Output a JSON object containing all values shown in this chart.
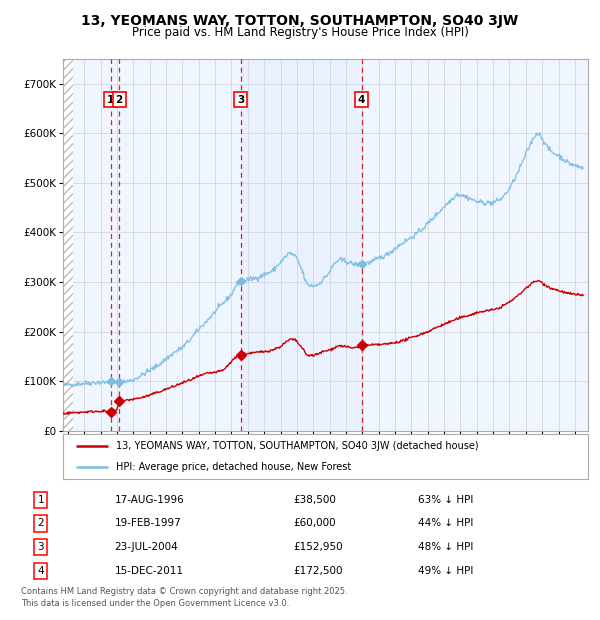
{
  "title": "13, YEOMANS WAY, TOTTON, SOUTHAMPTON, SO40 3JW",
  "subtitle": "Price paid vs. HM Land Registry's House Price Index (HPI)",
  "legend_line1": "13, YEOMANS WAY, TOTTON, SOUTHAMPTON, SO40 3JW (detached house)",
  "legend_line2": "HPI: Average price, detached house, New Forest",
  "transactions": [
    {
      "label": "1",
      "date": "1996-08-17",
      "price": 38500,
      "x_plot": 1996.63
    },
    {
      "label": "2",
      "date": "1997-02-19",
      "price": 60000,
      "x_plot": 1997.13
    },
    {
      "label": "3",
      "date": "2004-07-23",
      "price": 152950,
      "x_plot": 2004.56
    },
    {
      "label": "4",
      "date": "2011-12-15",
      "price": 172500,
      "x_plot": 2011.96
    }
  ],
  "table_rows": [
    {
      "num": "1",
      "date": "17-AUG-1996",
      "price": "£38,500",
      "pct": "63% ↓ HPI"
    },
    {
      "num": "2",
      "date": "19-FEB-1997",
      "price": "£60,000",
      "pct": "44% ↓ HPI"
    },
    {
      "num": "3",
      "date": "23-JUL-2004",
      "price": "£152,950",
      "pct": "48% ↓ HPI"
    },
    {
      "num": "4",
      "date": "15-DEC-2011",
      "price": "£172,500",
      "pct": "49% ↓ HPI"
    }
  ],
  "footnote": "Contains HM Land Registry data © Crown copyright and database right 2025.\nThis data is licensed under the Open Government Licence v3.0.",
  "hpi_color": "#7bbde0",
  "price_color": "#cc0000",
  "vline_color": "#cc0000",
  "shade_color": "#ddeeff",
  "background_color": "#ffffff",
  "chart_bg": "#f0f6ff",
  "ylim": [
    0,
    750000
  ],
  "xlim_start": 1993.7,
  "xlim_end": 2025.8,
  "hpi_anchors": [
    [
      1993.7,
      92000
    ],
    [
      1994.0,
      93000
    ],
    [
      1995.0,
      96000
    ],
    [
      1996.0,
      98000
    ],
    [
      1997.0,
      97000
    ],
    [
      1997.5,
      99000
    ],
    [
      1998.0,
      103000
    ],
    [
      1998.5,
      112000
    ],
    [
      1999.0,
      122000
    ],
    [
      1999.5,
      132000
    ],
    [
      2000.0,
      145000
    ],
    [
      2000.5,
      158000
    ],
    [
      2001.0,
      168000
    ],
    [
      2001.5,
      185000
    ],
    [
      2002.0,
      205000
    ],
    [
      2002.5,
      222000
    ],
    [
      2003.0,
      240000
    ],
    [
      2003.5,
      258000
    ],
    [
      2004.0,
      275000
    ],
    [
      2004.3,
      295000
    ],
    [
      2004.6,
      302000
    ],
    [
      2005.0,
      305000
    ],
    [
      2005.5,
      308000
    ],
    [
      2006.0,
      315000
    ],
    [
      2006.5,
      322000
    ],
    [
      2007.0,
      340000
    ],
    [
      2007.5,
      358000
    ],
    [
      2007.8,
      355000
    ],
    [
      2008.0,
      348000
    ],
    [
      2008.3,
      325000
    ],
    [
      2008.6,
      295000
    ],
    [
      2009.0,
      292000
    ],
    [
      2009.3,
      295000
    ],
    [
      2009.6,
      305000
    ],
    [
      2010.0,
      320000
    ],
    [
      2010.3,
      338000
    ],
    [
      2010.6,
      345000
    ],
    [
      2011.0,
      342000
    ],
    [
      2011.3,
      338000
    ],
    [
      2011.6,
      335000
    ],
    [
      2012.0,
      337000
    ],
    [
      2012.5,
      340000
    ],
    [
      2013.0,
      348000
    ],
    [
      2013.5,
      355000
    ],
    [
      2014.0,
      368000
    ],
    [
      2014.5,
      380000
    ],
    [
      2015.0,
      390000
    ],
    [
      2015.5,
      402000
    ],
    [
      2016.0,
      418000
    ],
    [
      2016.5,
      435000
    ],
    [
      2017.0,
      452000
    ],
    [
      2017.5,
      468000
    ],
    [
      2017.8,
      478000
    ],
    [
      2018.0,
      476000
    ],
    [
      2018.5,
      470000
    ],
    [
      2019.0,
      462000
    ],
    [
      2019.5,
      460000
    ],
    [
      2020.0,
      460000
    ],
    [
      2020.5,
      468000
    ],
    [
      2021.0,
      488000
    ],
    [
      2021.5,
      520000
    ],
    [
      2022.0,
      558000
    ],
    [
      2022.3,
      580000
    ],
    [
      2022.6,
      598000
    ],
    [
      2022.8,
      600000
    ],
    [
      2023.0,
      590000
    ],
    [
      2023.3,
      572000
    ],
    [
      2023.6,
      562000
    ],
    [
      2024.0,
      555000
    ],
    [
      2024.3,
      548000
    ],
    [
      2024.6,
      540000
    ],
    [
      2025.0,
      535000
    ],
    [
      2025.5,
      530000
    ]
  ],
  "price_anchors": [
    [
      1993.7,
      35000
    ],
    [
      1994.0,
      36000
    ],
    [
      1995.0,
      38000
    ],
    [
      1996.0,
      40000
    ],
    [
      1996.5,
      39000
    ],
    [
      1996.63,
      38500
    ],
    [
      1996.8,
      40000
    ],
    [
      1997.0,
      42000
    ],
    [
      1997.13,
      60000
    ],
    [
      1997.3,
      58000
    ],
    [
      1997.6,
      62000
    ],
    [
      1998.0,
      64000
    ],
    [
      1998.5,
      67000
    ],
    [
      1999.0,
      72000
    ],
    [
      1999.5,
      78000
    ],
    [
      2000.0,
      84000
    ],
    [
      2000.5,
      90000
    ],
    [
      2001.0,
      97000
    ],
    [
      2001.5,
      103000
    ],
    [
      2002.0,
      110000
    ],
    [
      2002.5,
      116000
    ],
    [
      2003.0,
      118000
    ],
    [
      2003.5,
      122000
    ],
    [
      2004.0,
      140000
    ],
    [
      2004.3,
      150000
    ],
    [
      2004.56,
      152950
    ],
    [
      2004.7,
      155000
    ],
    [
      2005.0,
      156000
    ],
    [
      2005.5,
      158000
    ],
    [
      2006.0,
      160000
    ],
    [
      2006.5,
      163000
    ],
    [
      2007.0,
      170000
    ],
    [
      2007.3,
      178000
    ],
    [
      2007.6,
      185000
    ],
    [
      2007.9,
      183000
    ],
    [
      2008.0,
      180000
    ],
    [
      2008.3,
      168000
    ],
    [
      2008.6,
      153000
    ],
    [
      2009.0,
      152000
    ],
    [
      2009.3,
      155000
    ],
    [
      2009.6,
      160000
    ],
    [
      2010.0,
      163000
    ],
    [
      2010.3,
      168000
    ],
    [
      2010.6,
      172000
    ],
    [
      2011.0,
      170000
    ],
    [
      2011.3,
      167000
    ],
    [
      2011.6,
      168000
    ],
    [
      2011.96,
      172500
    ],
    [
      2012.3,
      172000
    ],
    [
      2012.6,
      173000
    ],
    [
      2013.0,
      174000
    ],
    [
      2013.5,
      175000
    ],
    [
      2014.0,
      178000
    ],
    [
      2014.5,
      182000
    ],
    [
      2015.0,
      188000
    ],
    [
      2015.5,
      194000
    ],
    [
      2016.0,
      200000
    ],
    [
      2016.5,
      208000
    ],
    [
      2017.0,
      215000
    ],
    [
      2017.5,
      222000
    ],
    [
      2018.0,
      228000
    ],
    [
      2018.5,
      233000
    ],
    [
      2019.0,
      238000
    ],
    [
      2019.5,
      242000
    ],
    [
      2020.0,
      244000
    ],
    [
      2020.5,
      250000
    ],
    [
      2021.0,
      260000
    ],
    [
      2021.5,
      272000
    ],
    [
      2022.0,
      288000
    ],
    [
      2022.3,
      296000
    ],
    [
      2022.6,
      302000
    ],
    [
      2022.8,
      303000
    ],
    [
      2023.0,
      298000
    ],
    [
      2023.3,
      292000
    ],
    [
      2023.6,
      287000
    ],
    [
      2024.0,
      283000
    ],
    [
      2024.3,
      280000
    ],
    [
      2024.6,
      277000
    ],
    [
      2025.0,
      275000
    ],
    [
      2025.5,
      274000
    ]
  ]
}
